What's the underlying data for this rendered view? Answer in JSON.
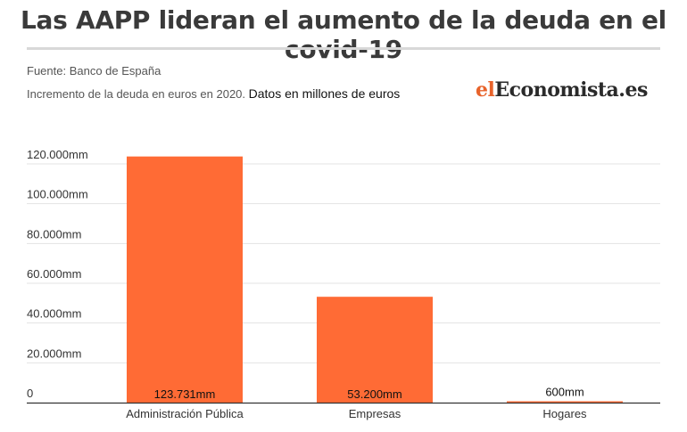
{
  "header": {
    "title": "Las AAPP lideran el aumento de la deuda en el covid-19",
    "source": "Fuente: Banco de España",
    "subtitle_prefix": "Incremento de la deuda en euros en 2020.",
    "subtitle_suffix": "Datos en millones de euros",
    "logo_part1": "el",
    "logo_part2": "Economista.es"
  },
  "colors": {
    "bar": "#ff6b35",
    "gridline": "#e3e3e3",
    "baseline": "#333333",
    "logo_accent": "#e8632b"
  },
  "chart_data": {
    "type": "bar",
    "title": "Las AAPP lideran el aumento de la deuda en el covid-19",
    "subtitle": "Incremento de la deuda en euros en 2020. Datos en millones de euros",
    "categories": [
      "Administración Pública",
      "Empresas",
      "Hogares"
    ],
    "values": [
      123731,
      53200,
      600
    ],
    "data_labels": [
      "123.731mm",
      "53.200mm",
      "600mm"
    ],
    "xlabel": "",
    "ylabel": "",
    "ylim": [
      0,
      120000
    ],
    "yticks": [
      0,
      20000,
      40000,
      60000,
      80000,
      100000,
      120000
    ],
    "ytick_labels": [
      "0",
      "20.000mm",
      "40.000mm",
      "60.000mm",
      "80.000mm",
      "100.000mm",
      "120.000mm"
    ],
    "grid": true,
    "legend": "none"
  }
}
